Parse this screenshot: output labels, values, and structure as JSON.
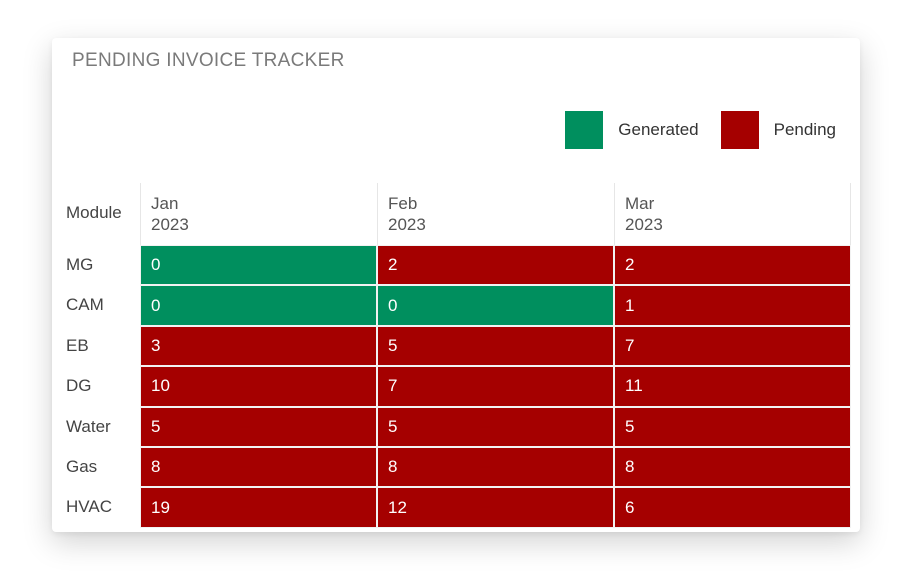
{
  "title": "PENDING INVOICE TRACKER",
  "legend": [
    {
      "label": "Generated",
      "color": "#008f5e"
    },
    {
      "label": "Pending",
      "color": "#a50000"
    }
  ],
  "table": {
    "row_header": "Module",
    "columns": [
      {
        "line1": "Jan",
        "line2": "2023"
      },
      {
        "line1": "Feb",
        "line2": "2023"
      },
      {
        "line1": "Mar",
        "line2": "2023"
      }
    ]
  },
  "chart_data": {
    "type": "heatmap",
    "title": "PENDING INVOICE TRACKER",
    "x": [
      "Jan 2023",
      "Feb 2023",
      "Mar 2023"
    ],
    "y": [
      "MG",
      "CAM",
      "EB",
      "DG",
      "Water",
      "Gas",
      "HVAC"
    ],
    "values": [
      [
        0,
        2,
        2
      ],
      [
        0,
        0,
        1
      ],
      [
        3,
        5,
        7
      ],
      [
        10,
        7,
        11
      ],
      [
        5,
        5,
        5
      ],
      [
        8,
        8,
        8
      ],
      [
        19,
        12,
        6
      ]
    ],
    "status": [
      [
        "Generated",
        "Pending",
        "Pending"
      ],
      [
        "Generated",
        "Generated",
        "Pending"
      ],
      [
        "Pending",
        "Pending",
        "Pending"
      ],
      [
        "Pending",
        "Pending",
        "Pending"
      ],
      [
        "Pending",
        "Pending",
        "Pending"
      ],
      [
        "Pending",
        "Pending",
        "Pending"
      ],
      [
        "Pending",
        "Pending",
        "Pending"
      ]
    ],
    "legend_position": "top-right"
  }
}
